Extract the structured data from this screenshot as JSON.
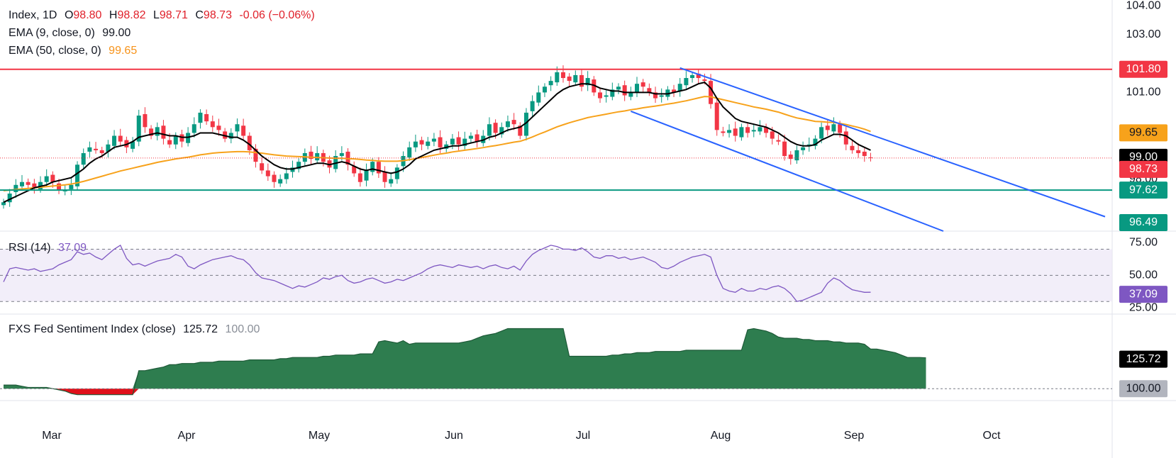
{
  "legend": {
    "symbol": "Index, 1D",
    "open_label": "O",
    "open": "98.80",
    "high_label": "H",
    "high": "98.82",
    "low_label": "L",
    "low": "98.71",
    "close_label": "C",
    "close": "98.73",
    "change": "-0.06 (−0.06%)",
    "ema9_label": "EMA (9, close, 0)",
    "ema9_value": "99.00",
    "ema50_label": "EMA (50, close, 0)",
    "ema50_value": "99.65",
    "rsi_label": "RSI (14)",
    "rsi_value": "37.09",
    "fxs_label": "FXS Fed Sentiment Index (close)",
    "fxs_value": "125.72",
    "fxs_base": "100.00"
  },
  "colors": {
    "up": "#089981",
    "down": "#f23645",
    "ema9": "#000000",
    "ema50": "#f7a21b",
    "resistance": "#f23645",
    "support": "#089981",
    "channel": "#2962ff",
    "rsi": "#7e57c2",
    "fxs_fill": "#2e7d4f",
    "fxs_neg": "#e0101a"
  },
  "chart_data": [
    {
      "type": "candlestick",
      "title": "Index, 1D",
      "price_ticks": [
        "104.00",
        "103.00",
        "101.00",
        "98.00"
      ],
      "ylim": [
        96.2,
        104.2
      ],
      "x_ticks": [
        "Mar",
        "Apr",
        "May",
        "Jun",
        "Jul",
        "Aug",
        "Sep",
        "Oct"
      ],
      "hlines": [
        {
          "value": 101.8,
          "label": "101.80",
          "color": "#f23645"
        },
        {
          "value": 97.62,
          "label": "97.62",
          "color": "#089981"
        }
      ],
      "channel_label": "96.49",
      "last_price": {
        "value": 98.73,
        "label": "98.73"
      },
      "ema50": {
        "last": 99.65,
        "label": "99.65"
      },
      "ema9": {
        "last": 99.0,
        "label": "99.00"
      },
      "close_series": [
        97.2,
        97.5,
        97.8,
        97.9,
        97.8,
        97.7,
        97.9,
        98.1,
        97.9,
        97.6,
        97.6,
        97.8,
        98.5,
        98.9,
        99.1,
        99.0,
        98.9,
        99.2,
        99.5,
        99.3,
        99.1,
        99.3,
        100.2,
        99.8,
        99.5,
        99.8,
        99.4,
        99.2,
        99.5,
        99.3,
        99.6,
        99.9,
        100.3,
        100.0,
        99.8,
        99.7,
        99.4,
        99.6,
        99.9,
        99.5,
        99.0,
        98.6,
        98.3,
        98.1,
        97.9,
        98.0,
        98.2,
        98.4,
        98.6,
        98.9,
        98.7,
        98.9,
        98.6,
        98.4,
        98.8,
        98.9,
        98.5,
        98.2,
        97.9,
        98.3,
        98.6,
        98.2,
        97.9,
        98.0,
        98.4,
        98.8,
        99.1,
        99.3,
        99.2,
        99.3,
        99.4,
        99.1,
        99.2,
        99.4,
        99.2,
        99.4,
        99.5,
        99.3,
        99.5,
        99.9,
        99.6,
        99.8,
        100.0,
        99.9,
        99.5,
        100.3,
        100.7,
        101.0,
        101.2,
        101.4,
        101.7,
        101.5,
        101.4,
        101.6,
        101.2,
        101.5,
        101.0,
        100.8,
        100.9,
        101.1,
        101.2,
        100.9,
        101.0,
        101.3,
        101.2,
        101.0,
        100.8,
        100.9,
        101.1,
        101.0,
        101.3,
        101.5,
        101.6,
        101.5,
        101.4,
        100.6,
        99.7,
        99.6,
        99.7,
        99.5,
        99.8,
        99.6,
        99.7,
        99.8,
        99.6,
        99.4,
        99.3,
        98.8,
        98.7,
        99.0,
        99.1,
        99.2,
        99.4,
        99.8,
        99.7,
        99.9,
        99.6,
        99.2,
        99.0,
        98.9,
        98.8,
        98.73
      ],
      "ema9_series": [
        97.2,
        97.3,
        97.4,
        97.5,
        97.6,
        97.7,
        97.75,
        97.8,
        97.9,
        97.95,
        98.0,
        98.05,
        98.2,
        98.35,
        98.55,
        98.7,
        98.8,
        98.95,
        99.1,
        99.15,
        99.2,
        99.3,
        99.45,
        99.5,
        99.55,
        99.6,
        99.55,
        99.5,
        99.5,
        99.45,
        99.45,
        99.5,
        99.6,
        99.6,
        99.6,
        99.55,
        99.5,
        99.45,
        99.45,
        99.35,
        99.2,
        99.0,
        98.8,
        98.65,
        98.5,
        98.4,
        98.35,
        98.35,
        98.4,
        98.45,
        98.5,
        98.55,
        98.55,
        98.5,
        98.55,
        98.6,
        98.55,
        98.45,
        98.35,
        98.3,
        98.35,
        98.3,
        98.25,
        98.2,
        98.25,
        98.35,
        98.5,
        98.7,
        98.8,
        98.9,
        99.0,
        99.05,
        99.1,
        99.15,
        99.15,
        99.2,
        99.25,
        99.3,
        99.35,
        99.45,
        99.5,
        99.6,
        99.7,
        99.75,
        99.8,
        99.95,
        100.15,
        100.35,
        100.55,
        100.75,
        100.95,
        101.1,
        101.2,
        101.25,
        101.3,
        101.3,
        101.25,
        101.15,
        101.1,
        101.05,
        101.05,
        101.0,
        101.0,
        101.0,
        101.0,
        101.0,
        100.95,
        100.95,
        100.95,
        101.0,
        101.05,
        101.1,
        101.2,
        101.3,
        101.35,
        101.15,
        100.8,
        100.5,
        100.3,
        100.1,
        100.0,
        99.95,
        99.9,
        99.85,
        99.8,
        99.7,
        99.6,
        99.45,
        99.3,
        99.2,
        99.15,
        99.15,
        99.2,
        99.35,
        99.45,
        99.55,
        99.55,
        99.5,
        99.35,
        99.2,
        99.1,
        99.0
      ],
      "ema50_series": [
        97.6,
        97.62,
        97.64,
        97.66,
        97.68,
        97.7,
        97.72,
        97.74,
        97.76,
        97.78,
        97.8,
        97.83,
        97.87,
        97.92,
        97.98,
        98.04,
        98.1,
        98.16,
        98.22,
        98.28,
        98.33,
        98.38,
        98.43,
        98.48,
        98.53,
        98.58,
        98.62,
        98.66,
        98.7,
        98.73,
        98.76,
        98.8,
        98.84,
        98.87,
        98.9,
        98.92,
        98.93,
        98.94,
        98.95,
        98.95,
        98.94,
        98.92,
        98.9,
        98.87,
        98.84,
        98.82,
        98.8,
        98.79,
        98.78,
        98.77,
        98.76,
        98.75,
        98.74,
        98.73,
        98.72,
        98.72,
        98.71,
        98.7,
        98.68,
        98.66,
        98.65,
        98.63,
        98.62,
        98.62,
        98.62,
        98.64,
        98.67,
        98.71,
        98.75,
        98.79,
        98.83,
        98.87,
        98.9,
        98.94,
        98.97,
        99.0,
        99.03,
        99.06,
        99.09,
        99.13,
        99.16,
        99.2,
        99.24,
        99.28,
        99.31,
        99.38,
        99.46,
        99.55,
        99.63,
        99.72,
        99.81,
        99.88,
        99.95,
        100.01,
        100.07,
        100.13,
        100.17,
        100.21,
        100.25,
        100.29,
        100.33,
        100.36,
        100.4,
        100.43,
        100.47,
        100.5,
        100.53,
        100.56,
        100.6,
        100.63,
        100.67,
        100.71,
        100.76,
        100.81,
        100.86,
        100.85,
        100.8,
        100.75,
        100.7,
        100.65,
        100.6,
        100.55,
        100.5,
        100.46,
        100.42,
        100.37,
        100.32,
        100.25,
        100.18,
        100.12,
        100.08,
        100.04,
        100.0,
        99.99,
        99.97,
        99.96,
        99.93,
        99.89,
        99.84,
        99.79,
        99.73,
        99.65
      ]
    },
    {
      "type": "line",
      "title": "RSI (14)",
      "ylim": [
        25,
        75
      ],
      "y_ticks": [
        "75.00",
        "50.00",
        "25.00"
      ],
      "band": [
        30,
        70
      ],
      "last": {
        "value": 37.09,
        "label": "37.09"
      },
      "values": [
        45,
        55,
        56,
        55,
        54,
        55,
        53,
        54,
        55,
        58,
        60,
        62,
        68,
        66,
        67,
        64,
        62,
        66,
        70,
        73,
        63,
        58,
        59,
        57,
        59,
        61,
        62,
        63,
        66,
        64,
        57,
        55,
        58,
        60,
        62,
        63,
        64,
        65,
        63,
        62,
        58,
        52,
        48,
        47,
        46,
        44,
        42,
        40,
        42,
        41,
        43,
        45,
        48,
        47,
        49,
        50,
        46,
        44,
        45,
        47,
        48,
        46,
        44,
        45,
        47,
        46,
        48,
        50,
        52,
        55,
        57,
        58,
        57,
        56,
        58,
        57,
        56,
        57,
        55,
        57,
        58,
        56,
        55,
        57,
        54,
        61,
        66,
        69,
        71,
        73,
        72,
        70,
        70,
        69,
        71,
        68,
        64,
        63,
        65,
        65,
        63,
        64,
        62,
        63,
        64,
        62,
        60,
        56,
        55,
        57,
        60,
        62,
        64,
        65,
        66,
        64,
        50,
        40,
        38,
        37,
        40,
        38,
        38,
        40,
        39,
        41,
        42,
        40,
        36,
        30,
        31,
        33,
        35,
        37,
        44,
        48,
        46,
        42,
        39,
        38,
        37,
        37.09
      ]
    },
    {
      "type": "area",
      "title": "FXS Fed Sentiment Index (close)",
      "baseline": 100,
      "ylim": [
        96,
        158
      ],
      "last": {
        "value": 125.72,
        "label": "125.72"
      },
      "base_label": "100.00",
      "values": [
        103,
        103,
        103,
        102,
        101,
        101,
        101,
        101,
        100,
        99,
        98,
        96,
        95,
        95,
        95,
        95,
        95,
        95,
        95,
        95,
        95,
        95,
        115,
        115,
        116,
        117,
        118,
        120,
        120,
        121,
        121,
        121,
        122,
        122,
        122,
        123,
        123,
        123,
        123,
        123,
        124,
        124,
        124,
        124,
        124,
        125,
        125,
        126,
        126,
        126,
        126,
        126,
        127,
        127,
        128,
        128,
        128,
        128,
        129,
        129,
        129,
        139,
        140,
        139,
        138,
        140,
        137,
        138,
        138,
        138,
        138,
        138,
        138,
        138,
        138,
        139,
        140,
        142,
        144,
        145,
        146,
        148,
        150,
        150,
        150,
        150,
        150,
        150,
        150,
        150,
        150,
        150,
        127,
        127,
        127,
        127,
        127,
        127,
        127,
        128,
        128,
        129,
        129,
        130,
        130,
        130,
        131,
        131,
        131,
        131,
        131,
        132,
        132,
        132,
        132,
        132,
        132,
        132,
        132,
        132,
        132,
        149,
        150,
        149,
        148,
        146,
        143,
        142,
        142,
        142,
        141,
        141,
        140,
        140,
        140,
        139,
        139,
        138,
        138,
        138,
        137,
        133,
        133,
        132,
        131,
        130,
        128,
        126,
        126,
        126,
        125.72
      ]
    }
  ]
}
